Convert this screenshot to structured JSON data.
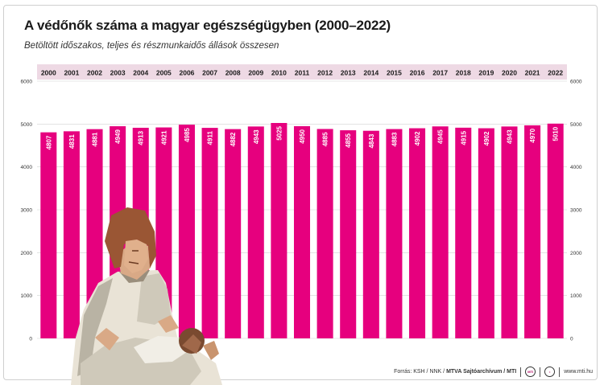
{
  "header": {
    "title": "A védőnők száma a magyar egészségügyben (2000–2022)",
    "subtitle": "Betöltött időszakos, teljes és részmunkaidős állások összesen"
  },
  "footer": {
    "source_prefix": "Forrás: KSH / NNK / ",
    "source_bold": "MTVA Sajtóarchívum / MTI",
    "logo1_icon": "mti-logo-icon",
    "logo2_icon": "mtva-logo-icon",
    "website": "www.mti.hu"
  },
  "chart_data": {
    "type": "bar",
    "title": "A védőnők száma a magyar egészségügyben (2000–2022)",
    "subtitle": "Betöltött időszakos, teljes és részmunkaidős állások összesen",
    "categories": [
      "2000",
      "2001",
      "2002",
      "2003",
      "2004",
      "2005",
      "2006",
      "2007",
      "2008",
      "2009",
      "2010",
      "2011",
      "2012",
      "2013",
      "2014",
      "2015",
      "2016",
      "2017",
      "2018",
      "2019",
      "2020",
      "2021",
      "2022"
    ],
    "values": [
      4807,
      4831,
      4881,
      4949,
      4913,
      4921,
      4985,
      4911,
      4882,
      4943,
      5025,
      4950,
      4885,
      4855,
      4843,
      4883,
      4902,
      4945,
      4915,
      4902,
      4943,
      4970,
      5010
    ],
    "value_labels": [
      "4807",
      "4831",
      "4881",
      "4949",
      "4913",
      "4921",
      "4985",
      "4911",
      "4882",
      "4943",
      "5025",
      "4950",
      "4885",
      "4855",
      "4843",
      "4883",
      "4902",
      "4945",
      "4915",
      "4902",
      "4943",
      "4970",
      "5010"
    ],
    "yticks": [
      0,
      1000,
      2000,
      3000,
      4000,
      5000,
      6000
    ],
    "ytick_labels": [
      "0",
      "1000",
      "2000",
      "3000",
      "4000",
      "5000",
      "6000"
    ],
    "ylim": [
      0,
      6000
    ],
    "xlabel": "",
    "ylabel": "",
    "grid": true,
    "legend": "none",
    "colors": {
      "bar": "#e6007e",
      "year_band": "#eed9e4",
      "label": "#ffffff"
    },
    "illustration": "nurse-with-baby"
  }
}
